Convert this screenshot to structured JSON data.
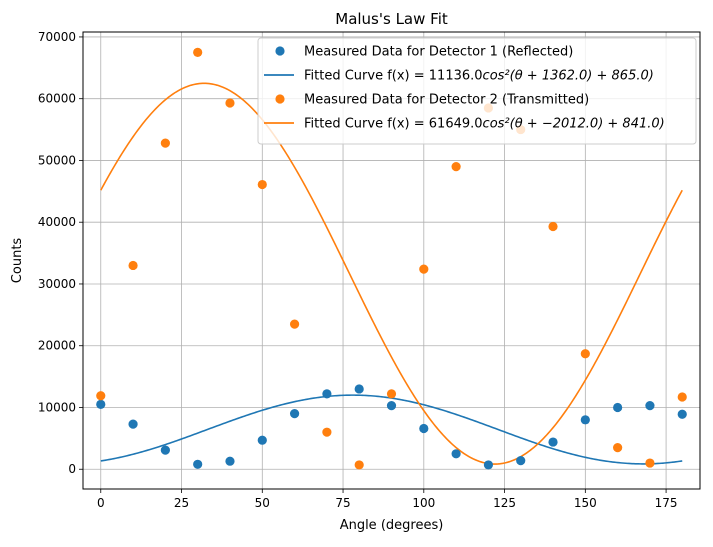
{
  "chart_data": {
    "type": "scatter",
    "title": "Malus's Law Fit",
    "xlabel": "Angle (degrees)",
    "ylabel": "Counts",
    "xlim": [
      -5.5,
      185.5
    ],
    "ylim": [
      -3200,
      70800
    ],
    "xticks": [
      0,
      25,
      50,
      75,
      100,
      125,
      150,
      175
    ],
    "xtick_labels": [
      "0",
      "25",
      "50",
      "75",
      "100",
      "125",
      "150",
      "175"
    ],
    "yticks": [
      0,
      10000,
      20000,
      30000,
      40000,
      50000,
      60000,
      70000
    ],
    "ytick_labels": [
      "0",
      "10000",
      "20000",
      "30000",
      "40000",
      "50000",
      "60000",
      "70000"
    ],
    "grid": true,
    "legend_position": "top-right",
    "x": [
      0,
      10,
      20,
      30,
      40,
      50,
      60,
      70,
      80,
      90,
      100,
      110,
      120,
      130,
      140,
      150,
      160,
      170,
      180
    ],
    "series": [
      {
        "name": "Measured Data for Detector 1 (Reflected)",
        "kind": "points",
        "color": "#1f77b4",
        "values": [
          10500,
          7300,
          3100,
          800,
          1300,
          4700,
          9000,
          12200,
          13000,
          10300,
          6600,
          2500,
          700,
          1400,
          4400,
          8000,
          10000,
          10300,
          8900
        ]
      },
      {
        "name_prefix": "Fitted Curve f(x) = 11136.0",
        "name_math": "cos²(θ + 1362.0) + 865.0)",
        "kind": "curve",
        "color": "#1f77b4",
        "amplitude": 11136.0,
        "phase_deg": 1362.0,
        "offset": 865.0
      },
      {
        "name": "Measured Data for Detector 2 (Transmitted)",
        "kind": "points",
        "color": "#ff7f0e",
        "values": [
          11900,
          33000,
          52800,
          67500,
          59300,
          46100,
          23500,
          6000,
          700,
          12200,
          32400,
          49000,
          58500,
          55000,
          39300,
          18700,
          3500,
          1000,
          11700
        ]
      },
      {
        "name_prefix": "Fitted Curve f(x) = 61649.0",
        "name_math": "cos²(θ + −2012.0) + 841.0)",
        "kind": "curve",
        "color": "#ff7f0e",
        "amplitude": 61649.0,
        "phase_deg": -2012.0,
        "offset": 841.0
      }
    ]
  }
}
